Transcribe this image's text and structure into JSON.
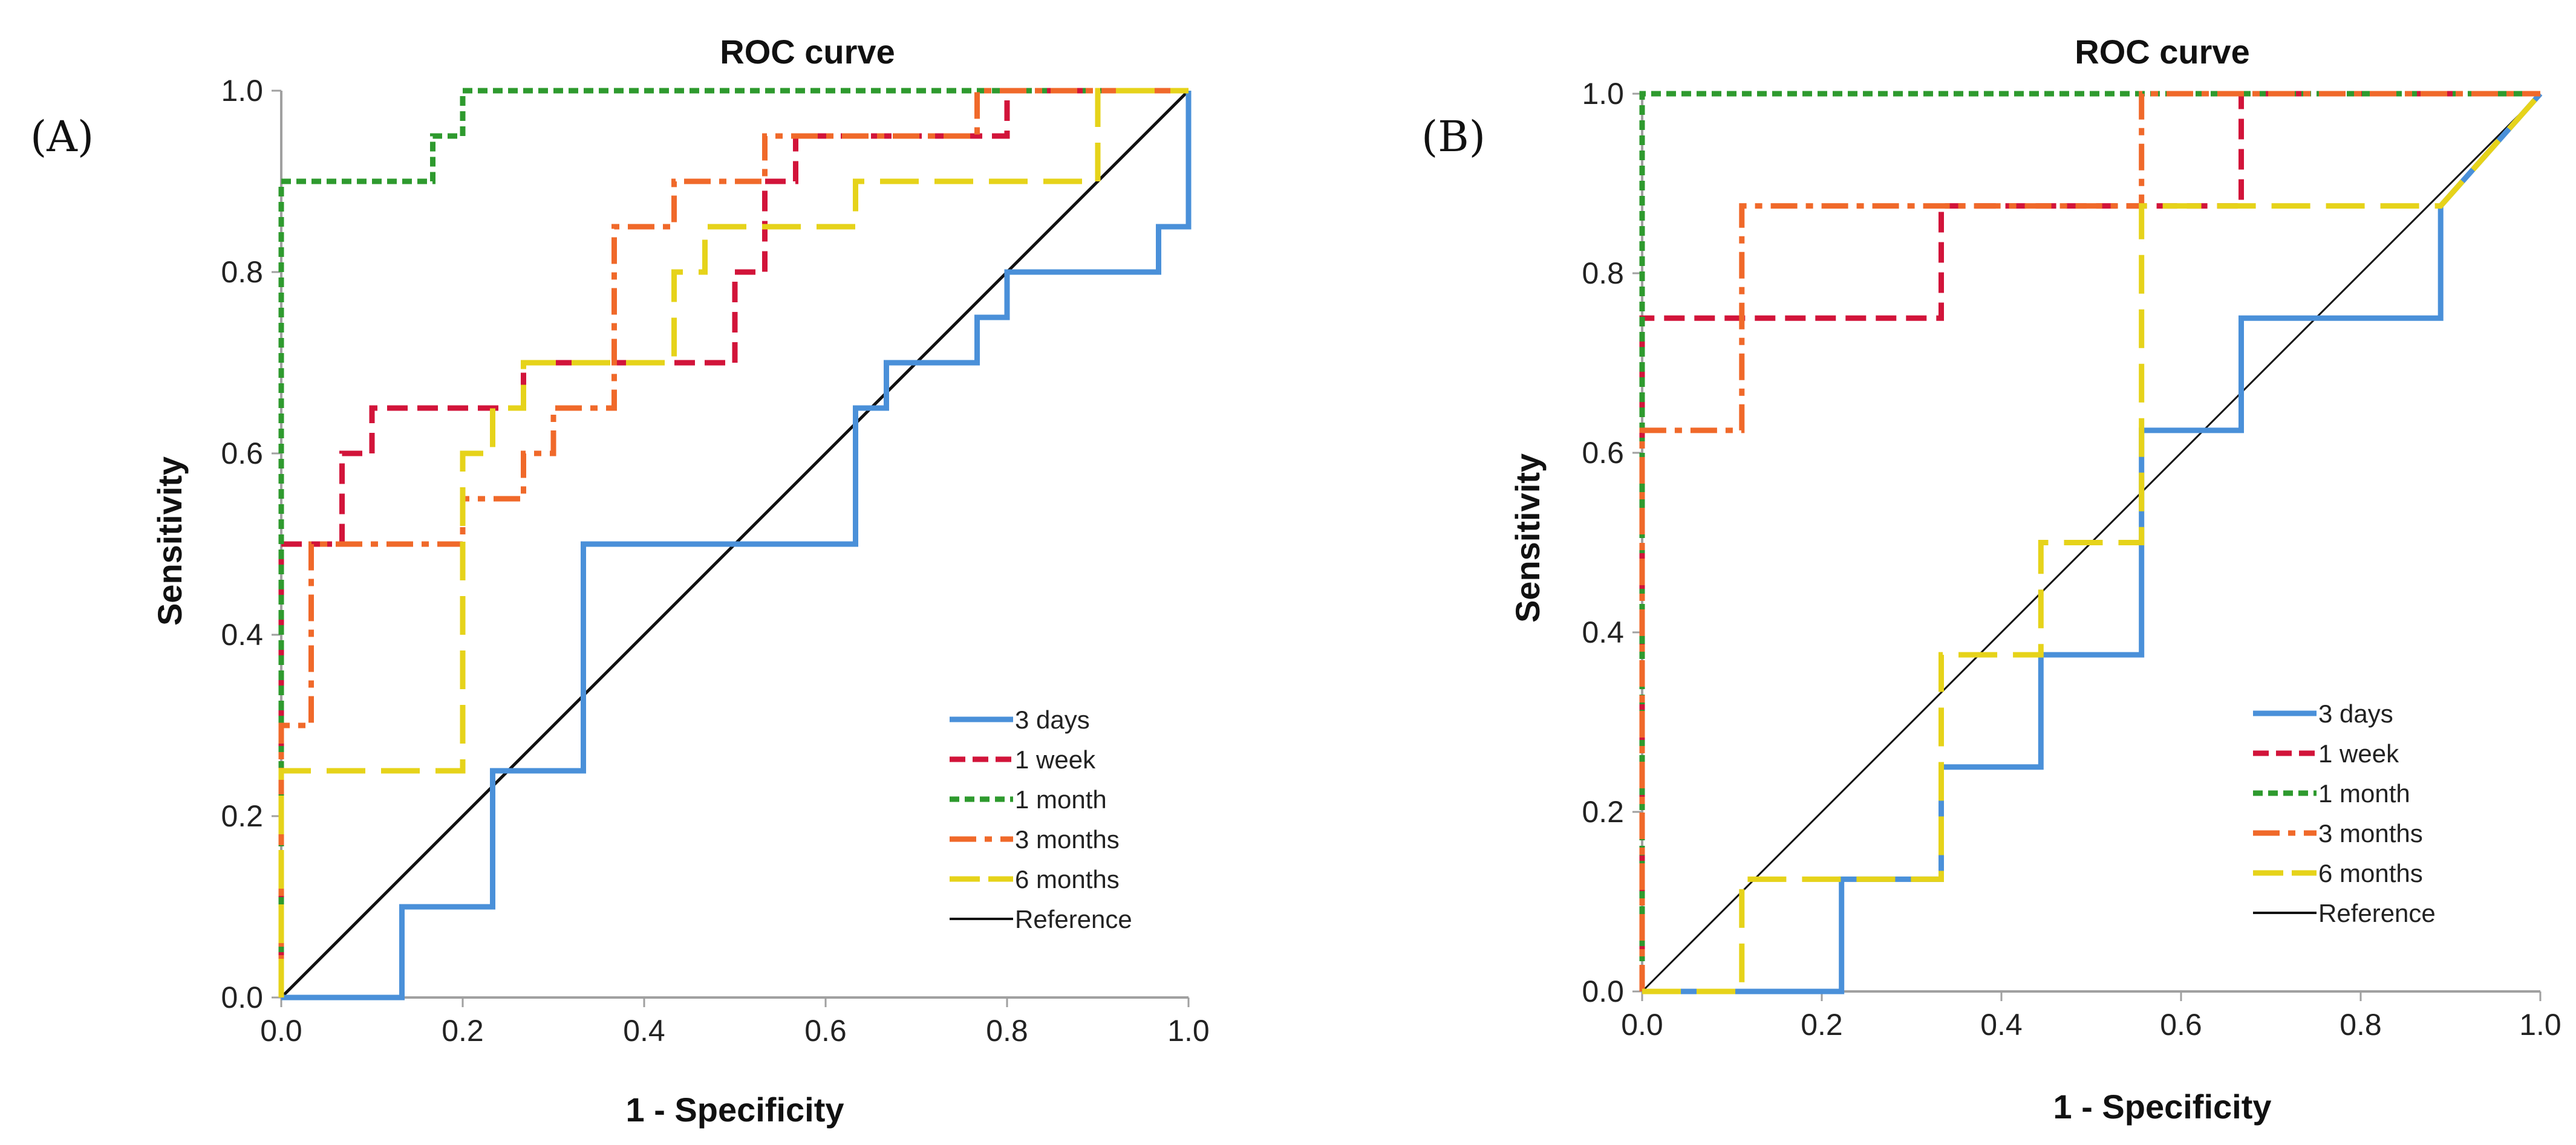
{
  "chart_data": [
    {
      "panel": "(A)",
      "type": "line",
      "title": "ROC curve",
      "xlabel": "1 - Specificity",
      "ylabel": "Sensitivity",
      "xlim": [
        0,
        1
      ],
      "ylim": [
        0,
        1
      ],
      "xticks": [
        "0.0",
        "0.2",
        "0.4",
        "0.6",
        "0.8",
        "1.0"
      ],
      "yticks": [
        "0.0",
        "0.2",
        "0.4",
        "0.6",
        "0.8",
        "1.0"
      ],
      "legend_position": "bottom-right",
      "series": [
        {
          "name": "3 days",
          "color": "#4A90D9",
          "dash": "solid",
          "points": [
            [
              0,
              0
            ],
            [
              0.133,
              0
            ],
            [
              0.133,
              0.1
            ],
            [
              0.233,
              0.1
            ],
            [
              0.233,
              0.25
            ],
            [
              0.333,
              0.25
            ],
            [
              0.333,
              0.5
            ],
            [
              0.633,
              0.5
            ],
            [
              0.633,
              0.65
            ],
            [
              0.667,
              0.65
            ],
            [
              0.667,
              0.7
            ],
            [
              0.767,
              0.7
            ],
            [
              0.767,
              0.75
            ],
            [
              0.8,
              0.75
            ],
            [
              0.8,
              0.8
            ],
            [
              0.967,
              0.8
            ],
            [
              0.967,
              0.85
            ],
            [
              1,
              0.85
            ],
            [
              1,
              1
            ]
          ]
        },
        {
          "name": "1 week",
          "color": "#D2143A",
          "dash": "short",
          "points": [
            [
              0,
              0
            ],
            [
              0,
              0.5
            ],
            [
              0.067,
              0.5
            ],
            [
              0.067,
              0.6
            ],
            [
              0.1,
              0.6
            ],
            [
              0.1,
              0.65
            ],
            [
              0.267,
              0.65
            ],
            [
              0.267,
              0.7
            ],
            [
              0.5,
              0.7
            ],
            [
              0.5,
              0.8
            ],
            [
              0.533,
              0.8
            ],
            [
              0.533,
              0.85
            ],
            [
              0.533,
              0.9
            ],
            [
              0.567,
              0.9
            ],
            [
              0.567,
              0.95
            ],
            [
              0.8,
              0.95
            ],
            [
              0.8,
              1
            ],
            [
              1,
              1
            ]
          ]
        },
        {
          "name": "1 month",
          "color": "#2E9A2E",
          "dash": "dotted",
          "points": [
            [
              0,
              0
            ],
            [
              0,
              0.9
            ],
            [
              0.167,
              0.9
            ],
            [
              0.167,
              0.95
            ],
            [
              0.2,
              0.95
            ],
            [
              0.2,
              1
            ],
            [
              1,
              1
            ]
          ]
        },
        {
          "name": "3 months",
          "color": "#F0692A",
          "dash": "dashdot",
          "points": [
            [
              0,
              0
            ],
            [
              0,
              0.3
            ],
            [
              0.033,
              0.3
            ],
            [
              0.033,
              0.5
            ],
            [
              0.2,
              0.5
            ],
            [
              0.2,
              0.55
            ],
            [
              0.267,
              0.55
            ],
            [
              0.267,
              0.6
            ],
            [
              0.3,
              0.6
            ],
            [
              0.3,
              0.65
            ],
            [
              0.367,
              0.65
            ],
            [
              0.367,
              0.85
            ],
            [
              0.433,
              0.85
            ],
            [
              0.433,
              0.9
            ],
            [
              0.533,
              0.9
            ],
            [
              0.533,
              0.95
            ],
            [
              0.767,
              0.95
            ],
            [
              0.767,
              1
            ],
            [
              1,
              1
            ]
          ]
        },
        {
          "name": "6 months",
          "color": "#E6D31A",
          "dash": "long",
          "points": [
            [
              0,
              0
            ],
            [
              0,
              0.25
            ],
            [
              0.2,
              0.25
            ],
            [
              0.2,
              0.6
            ],
            [
              0.233,
              0.6
            ],
            [
              0.233,
              0.65
            ],
            [
              0.267,
              0.65
            ],
            [
              0.267,
              0.7
            ],
            [
              0.433,
              0.7
            ],
            [
              0.433,
              0.8
            ],
            [
              0.467,
              0.8
            ],
            [
              0.467,
              0.85
            ],
            [
              0.633,
              0.85
            ],
            [
              0.633,
              0.9
            ],
            [
              0.9,
              0.9
            ],
            [
              0.9,
              1
            ],
            [
              1,
              1
            ]
          ]
        },
        {
          "name": "Reference",
          "color": "#111111",
          "dash": "reference",
          "points": [
            [
              0,
              0
            ],
            [
              1,
              1
            ]
          ]
        }
      ]
    },
    {
      "panel": "(B)",
      "type": "line",
      "title": "ROC curve",
      "xlabel": "1 - Specificity",
      "ylabel": "Sensitivity",
      "xlim": [
        0,
        1
      ],
      "ylim": [
        0,
        1
      ],
      "xticks": [
        "0.0",
        "0.2",
        "0.4",
        "0.6",
        "0.8",
        "1.0"
      ],
      "yticks": [
        "0.0",
        "0.2",
        "0.4",
        "0.6",
        "0.8",
        "1.0"
      ],
      "legend_position": "bottom-right",
      "series": [
        {
          "name": "3 days",
          "color": "#4A90D9",
          "dash": "solid",
          "points": [
            [
              0,
              0
            ],
            [
              0.222,
              0
            ],
            [
              0.222,
              0.125
            ],
            [
              0.333,
              0.125
            ],
            [
              0.333,
              0.25
            ],
            [
              0.444,
              0.25
            ],
            [
              0.444,
              0.375
            ],
            [
              0.556,
              0.375
            ],
            [
              0.556,
              0.625
            ],
            [
              0.667,
              0.625
            ],
            [
              0.667,
              0.75
            ],
            [
              0.889,
              0.75
            ],
            [
              0.889,
              0.875
            ],
            [
              1,
              1
            ]
          ]
        },
        {
          "name": "1 week",
          "color": "#D2143A",
          "dash": "short",
          "points": [
            [
              0,
              0
            ],
            [
              0,
              0.75
            ],
            [
              0.333,
              0.75
            ],
            [
              0.333,
              0.875
            ],
            [
              0.667,
              0.875
            ],
            [
              0.667,
              1
            ],
            [
              1,
              1
            ]
          ]
        },
        {
          "name": "1 month",
          "color": "#2E9A2E",
          "dash": "dotted",
          "points": [
            [
              0,
              0
            ],
            [
              0,
              1
            ],
            [
              1,
              1
            ]
          ]
        },
        {
          "name": "3 months",
          "color": "#F0692A",
          "dash": "dashdot",
          "points": [
            [
              0,
              0
            ],
            [
              0,
              0.625
            ],
            [
              0.111,
              0.625
            ],
            [
              0.111,
              0.875
            ],
            [
              0.556,
              0.875
            ],
            [
              0.556,
              1
            ],
            [
              1,
              1
            ]
          ]
        },
        {
          "name": "6 months",
          "color": "#E6D31A",
          "dash": "long",
          "points": [
            [
              0,
              0
            ],
            [
              0.111,
              0
            ],
            [
              0.111,
              0.125
            ],
            [
              0.333,
              0.125
            ],
            [
              0.333,
              0.375
            ],
            [
              0.444,
              0.375
            ],
            [
              0.444,
              0.5
            ],
            [
              0.556,
              0.5
            ],
            [
              0.556,
              0.875
            ],
            [
              0.889,
              0.875
            ],
            [
              1,
              1
            ]
          ]
        },
        {
          "name": "Reference",
          "color": "#111111",
          "dash": "reference",
          "points": [
            [
              0,
              0
            ],
            [
              1,
              1
            ]
          ]
        }
      ]
    }
  ]
}
